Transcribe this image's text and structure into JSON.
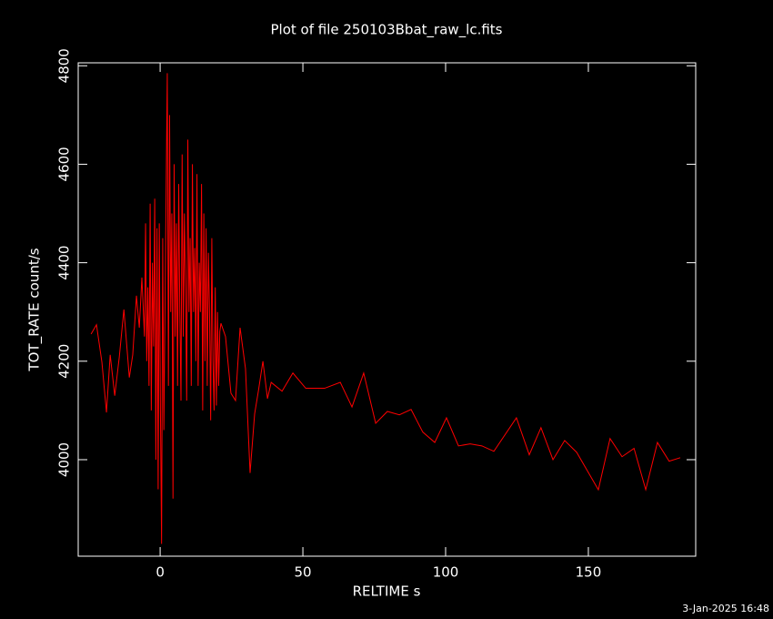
{
  "chart_data": {
    "type": "line",
    "title": "Plot of file 250103Bbat_raw_lc.fits",
    "x_label": "RELTIME  s",
    "y_label": "TOT_RATE  count/s",
    "footer": "3-Jan-2025 16:48",
    "color": "#ff0000",
    "x": [
      -24.2,
      -22.3,
      -20.4,
      -18.8,
      -17.5,
      -15.9,
      -14.3,
      -12.7,
      -10.8,
      -9.6,
      -8.3,
      -7.3,
      -6.4,
      -5.5,
      -5.1,
      -4.7,
      -4.3,
      -3.9,
      -3.5,
      -3.1,
      -2.7,
      -2.3,
      -1.9,
      -1.5,
      -1.1,
      -0.7,
      -0.3,
      0.1,
      0.5,
      0.9,
      1.3,
      1.7,
      2.1,
      2.5,
      2.9,
      3.3,
      3.7,
      4.1,
      4.5,
      4.9,
      5.3,
      5.7,
      6.1,
      6.5,
      6.9,
      7.3,
      7.7,
      8.1,
      8.5,
      8.9,
      9.3,
      9.7,
      10.1,
      10.5,
      10.9,
      11.3,
      11.7,
      12.1,
      12.5,
      12.9,
      13.3,
      13.7,
      14.1,
      14.5,
      14.9,
      15.3,
      15.7,
      16.1,
      16.5,
      16.9,
      17.3,
      17.7,
      18.1,
      18.5,
      18.9,
      19.3,
      19.7,
      20.1,
      20.5,
      20.9,
      21.3,
      22.9,
      24.8,
      26.4,
      28.0,
      29.9,
      31.5,
      33.1,
      34.4,
      36.0,
      37.6,
      38.9,
      42.7,
      46.5,
      51.0,
      57.6,
      63.1,
      67.2,
      71.3,
      75.5,
      79.6,
      83.8,
      87.9,
      92.0,
      96.2,
      100.3,
      104.5,
      108.6,
      112.7,
      116.9,
      124.8,
      129.3,
      133.4,
      137.6,
      141.7,
      145.9,
      153.5,
      157.6,
      161.8,
      166.0,
      170.1,
      174.2,
      178.3,
      182.2
    ],
    "values": [
      4255,
      4274,
      4198,
      4096,
      4213,
      4130,
      4209,
      4305,
      4167,
      4213,
      4333,
      4268,
      4370,
      4250,
      4480,
      4200,
      4350,
      4150,
      4520,
      4100,
      4400,
      4230,
      4530,
      4000,
      4470,
      3940,
      4480,
      4100,
      3829,
      4450,
      4060,
      4300,
      4550,
      4785,
      4150,
      4700,
      4300,
      4500,
      3921,
      4600,
      4250,
      4480,
      4150,
      4560,
      4300,
      4120,
      4620,
      4250,
      4500,
      4350,
      4120,
      4650,
      4300,
      4450,
      4150,
      4600,
      4300,
      4430,
      4200,
      4580,
      4150,
      4400,
      4300,
      4560,
      4100,
      4500,
      4200,
      4470,
      4150,
      4420,
      4300,
      4080,
      4450,
      4200,
      4100,
      4350,
      4110,
      4300,
      4150,
      4260,
      4277,
      4250,
      4135,
      4120,
      4268,
      4185,
      3973,
      4093,
      4139,
      4200,
      4124,
      4157,
      4139,
      4176,
      4145,
      4145,
      4157,
      4107,
      4176,
      4074,
      4098,
      4091,
      4102,
      4056,
      4035,
      4085,
      4028,
      4032,
      4028,
      4017,
      4085,
      4010,
      4065,
      4000,
      4039,
      4015,
      3939,
      4043,
      4006,
      4023,
      3939,
      4035,
      3997,
      4004
    ],
    "xlim": [
      -28.7,
      187.6
    ],
    "ylim": [
      3804,
      4806
    ],
    "xticks": [
      0,
      50,
      100,
      150
    ],
    "yticks": [
      4000,
      4200,
      4400,
      4600,
      4800
    ]
  }
}
